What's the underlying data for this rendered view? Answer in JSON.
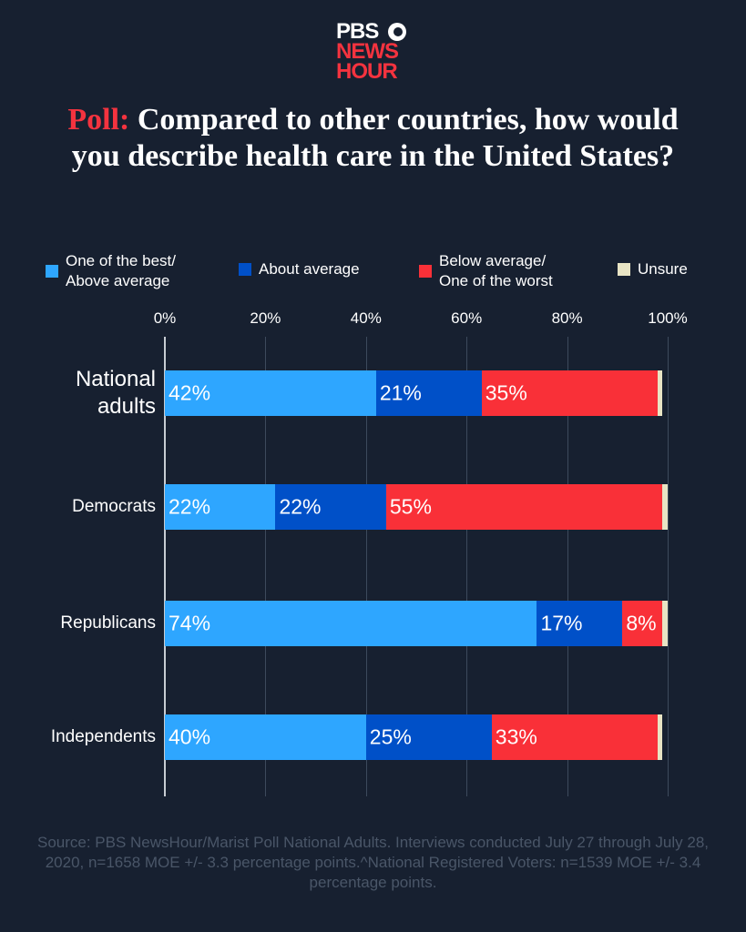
{
  "logo": {
    "line1": "PBS",
    "line2": "NEWS",
    "line3": "HOUR"
  },
  "title": {
    "highlight": "Poll:",
    "text": "Compared to other countries, how would you describe health care in the United States?"
  },
  "source": "Source: PBS NewsHour/Marist Poll National Adults. Interviews conducted July 27 through July 28, 2020, n=1658 MOE +/- 3.3 percentage points.^National Registered Voters: n=1539 MOE +/- 3.4 percentage points.",
  "chart_data": {
    "type": "bar",
    "orientation": "horizontal",
    "stacked": true,
    "categories": [
      "National adults",
      "Democrats",
      "Republicans",
      "Independents"
    ],
    "series": [
      {
        "name": "One of the best/ Above average",
        "color": "#2ea6ff",
        "values": [
          42,
          22,
          74,
          40
        ],
        "labels": [
          "42%",
          "22%",
          "74%",
          "40%"
        ]
      },
      {
        "name": "About average",
        "color": "#0050c8",
        "values": [
          21,
          22,
          17,
          25
        ],
        "labels": [
          "21%",
          "22%",
          "17%",
          "25%"
        ]
      },
      {
        "name": "Below average/ One of the worst",
        "color": "#f93038",
        "values": [
          35,
          55,
          8,
          33
        ],
        "labels": [
          "35%",
          "55%",
          "8%",
          "33%"
        ]
      },
      {
        "name": "Unsure",
        "color": "#e8e4c4",
        "values": [
          1,
          1,
          1,
          1
        ],
        "labels": []
      }
    ],
    "xlim": [
      0,
      100
    ],
    "xticks": [
      "0%",
      "20%",
      "40%",
      "60%",
      "80%",
      "100%"
    ],
    "grid": true,
    "legend": "top"
  }
}
